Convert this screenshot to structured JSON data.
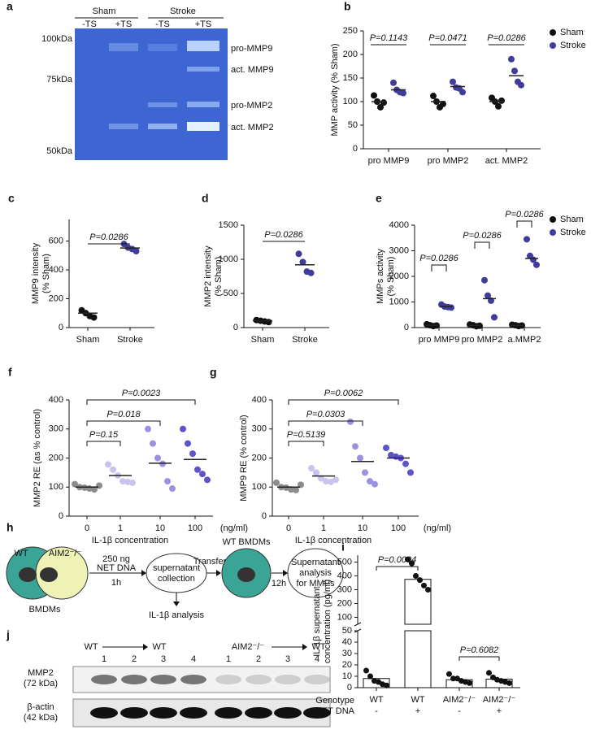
{
  "gel_a": {
    "panel": "a",
    "groups": [
      "Sham",
      "Stroke"
    ],
    "lanes": [
      "-TS",
      "+TS",
      "-TS",
      "+TS"
    ],
    "markers": [
      "100kDa",
      "75kDa",
      "50kDa"
    ],
    "bands": [
      "pro-MMP9",
      "act. MMP9",
      "pro-MMP2",
      "act. MMP2"
    ]
  },
  "chart_data": [
    {
      "type": "dot",
      "panel": "b",
      "ylabel": "MMP activity (% Sham)",
      "categories": [
        "pro MMP9",
        "pro MMP2",
        "act. MMP2"
      ],
      "series": [
        {
          "name": "Sham",
          "color": "#111111",
          "values": [
            [
              113,
              100,
              88,
              98
            ],
            [
              112,
              100,
              88,
              95
            ],
            [
              108,
              100,
              90,
              102
            ]
          ],
          "means": [
            100,
            100,
            100
          ]
        },
        {
          "name": "Stroke",
          "color": "#3f3c9c",
          "values": [
            [
              140,
              125,
              120,
              118
            ],
            [
              142,
              130,
              128,
              120
            ],
            [
              190,
              165,
              142,
              135
            ]
          ],
          "means": [
            125,
            132,
            155
          ]
        }
      ],
      "ylim": [
        0,
        250
      ],
      "yticks": [
        0,
        50,
        100,
        150,
        200,
        250
      ],
      "annotations": [
        "P=0.1143",
        "P=0.0471",
        "P=0.0286"
      ],
      "legend": "top-right"
    },
    {
      "type": "dot",
      "panel": "c",
      "ylabel": [
        "MMP9 intensity",
        "(% Sham)"
      ],
      "categories": [
        "Sham",
        "Stroke"
      ],
      "colors": [
        "#111111",
        "#3f3c9c"
      ],
      "values": [
        [
          120,
          100,
          80,
          70
        ],
        [
          580,
          555,
          545,
          530
        ]
      ],
      "means": [
        100,
        552
      ],
      "ylim": [
        0,
        750
      ],
      "yticks": [
        0,
        200,
        400,
        600
      ],
      "annotations": [
        "P=0.0286"
      ]
    },
    {
      "type": "dot",
      "panel": "d",
      "ylabel": [
        "MMP2 intensity",
        "(% Sham)"
      ],
      "categories": [
        "Sham",
        "Stroke"
      ],
      "colors": [
        "#111111",
        "#3f3c9c"
      ],
      "values": [
        [
          110,
          100,
          90,
          80
        ],
        [
          1080,
          960,
          820,
          800
        ]
      ],
      "means": [
        100,
        920
      ],
      "ylim": [
        0,
        1500
      ],
      "yticks": [
        0,
        500,
        1000,
        1500
      ],
      "annotations": [
        "P=0.0286"
      ]
    },
    {
      "type": "dot",
      "panel": "e",
      "ylabel": [
        "MMPs activity",
        "(% Sham)"
      ],
      "categories": [
        "pro MMP9",
        "pro MMP2",
        "a.MMP2"
      ],
      "series": [
        {
          "name": "Sham",
          "color": "#111111",
          "values": [
            [
              130,
              90,
              60,
              80
            ],
            [
              120,
              90,
              50,
              70
            ],
            [
              110,
              90,
              60,
              80
            ]
          ],
          "means": [
            90,
            80,
            85
          ]
        },
        {
          "name": "Stroke",
          "color": "#3f3c9c",
          "values": [
            [
              900,
              820,
              800,
              780
            ],
            [
              1850,
              1250,
              1050,
              400
            ],
            [
              3450,
              2800,
              2650,
              2450
            ]
          ],
          "means": [
            820,
            1130,
            2700
          ]
        }
      ],
      "ylim": [
        0,
        4000
      ],
      "yticks": [
        0,
        1000,
        2000,
        3000,
        4000
      ],
      "annotations": [
        "P=0.0286",
        "P=0.0286",
        "P=0.0286"
      ],
      "legend": "top-right"
    },
    {
      "type": "dot",
      "panel": "f",
      "ylabel": "MMP2 RE (as % control)",
      "xlabel": "IL-1β concentration",
      "xunit": "(ng/ml)",
      "categories": [
        "0",
        "1",
        "10",
        "100"
      ],
      "colors": [
        "#8c8c8c",
        "#c9c3ee",
        "#9a92e0",
        "#5d54cc"
      ],
      "values": [
        [
          110,
          100,
          98,
          95,
          92,
          105
        ],
        [
          178,
          160,
          140,
          120,
          118,
          115
        ],
        [
          300,
          250,
          200,
          180,
          120,
          95
        ],
        [
          300,
          250,
          215,
          160,
          145,
          125
        ]
      ],
      "means": [
        100,
        140,
        182,
        195
      ],
      "ylim": [
        0,
        400
      ],
      "yticks": [
        0,
        100,
        200,
        300,
        400
      ],
      "annotations": [
        "P=0.15",
        "P=0.018",
        "P=0.0023"
      ]
    },
    {
      "type": "dot",
      "panel": "g",
      "ylabel": "MMP9 RE (% control)",
      "xlabel": "IL-1β concentration",
      "xunit": "(ng/ml)",
      "categories": [
        "0",
        "1",
        "10",
        "100"
      ],
      "colors": [
        "#8c8c8c",
        "#c9c3ee",
        "#9a92e0",
        "#5d54cc"
      ],
      "values": [
        [
          115,
          100,
          98,
          92,
          90,
          108
        ],
        [
          165,
          150,
          130,
          120,
          118,
          125
        ],
        [
          325,
          240,
          200,
          150,
          120,
          110
        ],
        [
          235,
          210,
          205,
          200,
          180,
          150
        ]
      ],
      "means": [
        100,
        138,
        188,
        200
      ],
      "ylim": [
        0,
        400
      ],
      "yticks": [
        0,
        100,
        200,
        300,
        400
      ],
      "annotations": [
        "P=0.5139",
        "P=0.0303",
        "P=0.0062"
      ]
    },
    {
      "type": "bar",
      "panel": "i",
      "ylabel": [
        "IL-1β supernatant",
        "concentration (pg/ml)"
      ],
      "categories": [
        "WT",
        "WT",
        "AIM2⁻/⁻",
        "AIM2⁻/⁻"
      ],
      "row_labels": [
        "Genotype",
        "NET DNA"
      ],
      "treatment": [
        "-",
        "+",
        "-",
        "+"
      ],
      "color": "#ffffff",
      "values": [
        8,
        375,
        7,
        7.5
      ],
      "points": [
        [
          15,
          10,
          6,
          5,
          3,
          2
        ],
        [
          520,
          490,
          400,
          370,
          330,
          300
        ],
        [
          12,
          8,
          8,
          6,
          5,
          4
        ],
        [
          13,
          9,
          7,
          6,
          5,
          4
        ]
      ],
      "ylim": [
        0,
        550
      ],
      "yticks": [
        0,
        10,
        20,
        30,
        40,
        50,
        100,
        200,
        300,
        400,
        500
      ],
      "y_break": 50,
      "annotations": [
        "P=0.0004",
        "P=0.6082"
      ]
    }
  ],
  "diagram_h": {
    "panel": "h",
    "cells": [
      "WT",
      "AIM2⁻/⁻"
    ],
    "cell_label": "BMDMs",
    "dose": "250 ng",
    "agent": "NET DNA",
    "time1": "1h",
    "step1": [
      "supernatant",
      "collection"
    ],
    "step1_out": "IL-1β analysis",
    "transfer": "Transfer",
    "target": "WT BMDMs",
    "time2": "12h",
    "step2": [
      "Supernatant",
      "analysis",
      "for MMPs"
    ]
  },
  "blot_j": {
    "panel": "j",
    "groups": [
      "WT",
      "WT",
      "AIM2⁻/⁻",
      "WT"
    ],
    "lanes": [
      "1",
      "2",
      "3",
      "4",
      "1",
      "2",
      "3",
      "4"
    ],
    "rows": [
      [
        "MMP2",
        "(72 kDa)"
      ],
      [
        "β-actin",
        "(42 kDa)"
      ]
    ]
  }
}
